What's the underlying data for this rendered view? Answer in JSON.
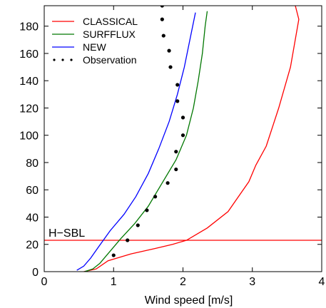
{
  "chart_data": {
    "type": "line",
    "title": "",
    "xlabel": "Wind speed [m/s]",
    "ylabel": "",
    "xlim": [
      0,
      4
    ],
    "ylim": [
      0,
      195
    ],
    "x_ticks": [
      0,
      1,
      2,
      3,
      4
    ],
    "x_tick_labels": [
      "0",
      "1",
      "2",
      "3",
      "4"
    ],
    "y_ticks": [
      0,
      20,
      40,
      60,
      80,
      100,
      120,
      140,
      160,
      180
    ],
    "y_tick_labels": [
      "0",
      "20",
      "40",
      "60",
      "80",
      "100",
      "120",
      "140",
      "160",
      "180"
    ],
    "grid": false,
    "legend_position": "top-left",
    "series": [
      {
        "name": "CLASSICAL",
        "color": "#ff0000",
        "style": "line",
        "points": [
          [
            0.57,
            0
          ],
          [
            0.75,
            2
          ],
          [
            0.92,
            8
          ],
          [
            1.25,
            13
          ],
          [
            1.6,
            17
          ],
          [
            1.85,
            20
          ],
          [
            2.05,
            23
          ],
          [
            2.35,
            32
          ],
          [
            2.65,
            44
          ],
          [
            2.8,
            55
          ],
          [
            2.95,
            66
          ],
          [
            3.05,
            78
          ],
          [
            3.2,
            92
          ],
          [
            3.38,
            120
          ],
          [
            3.55,
            150
          ],
          [
            3.67,
            185
          ],
          [
            3.62,
            195
          ]
        ]
      },
      {
        "name": "SURFFLUX",
        "color": "#007700",
        "style": "line",
        "points": [
          [
            0.58,
            0
          ],
          [
            0.7,
            2
          ],
          [
            0.8,
            6
          ],
          [
            0.95,
            15
          ],
          [
            1.1,
            24
          ],
          [
            1.3,
            35
          ],
          [
            1.5,
            48
          ],
          [
            1.7,
            65
          ],
          [
            1.9,
            82
          ],
          [
            2.05,
            100
          ],
          [
            2.15,
            120
          ],
          [
            2.22,
            140
          ],
          [
            2.28,
            160
          ],
          [
            2.32,
            180
          ],
          [
            2.35,
            191
          ]
        ]
      },
      {
        "name": "NEW",
        "color": "#0000ff",
        "style": "line",
        "points": [
          [
            0.47,
            1
          ],
          [
            0.57,
            4
          ],
          [
            0.67,
            10
          ],
          [
            0.78,
            18
          ],
          [
            0.95,
            30
          ],
          [
            1.15,
            42
          ],
          [
            1.32,
            55
          ],
          [
            1.5,
            72
          ],
          [
            1.65,
            90
          ],
          [
            1.8,
            110
          ],
          [
            1.92,
            130
          ],
          [
            2.02,
            150
          ],
          [
            2.1,
            170
          ],
          [
            2.18,
            190
          ]
        ]
      },
      {
        "name": "Observation",
        "color": "#000000",
        "style": "dots",
        "points": [
          [
            1.0,
            12
          ],
          [
            1.2,
            23
          ],
          [
            1.35,
            34
          ],
          [
            1.48,
            45
          ],
          [
            1.6,
            55
          ],
          [
            1.78,
            65
          ],
          [
            1.9,
            75
          ],
          [
            1.9,
            88
          ],
          [
            2.0,
            100
          ],
          [
            2.0,
            113
          ],
          [
            1.92,
            125
          ],
          [
            1.92,
            137
          ],
          [
            1.82,
            150
          ],
          [
            1.8,
            162
          ],
          [
            1.72,
            173
          ],
          [
            1.7,
            185
          ],
          [
            1.7,
            195
          ]
        ]
      }
    ],
    "annotations": [
      {
        "text": "H−SBL",
        "type": "hline",
        "y": 23,
        "color": "#ff0000"
      }
    ]
  }
}
